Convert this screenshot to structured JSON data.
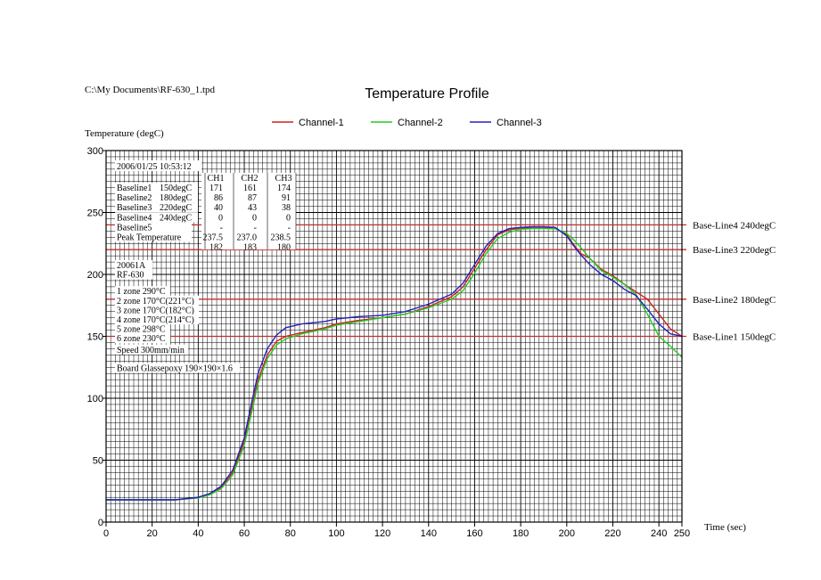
{
  "file_path": "C:\\My Documents\\RF-630_1.tpd",
  "chart_data": {
    "type": "line",
    "title": "Temperature Profile",
    "ylabel": "Temperature (degC)",
    "xlabel": "Time (sec)",
    "xlim": [
      0,
      250
    ],
    "ylim": [
      0,
      300
    ],
    "x_ticks": [
      0,
      20,
      40,
      60,
      80,
      100,
      120,
      140,
      160,
      180,
      200,
      220,
      240,
      250
    ],
    "y_ticks": [
      0,
      50,
      100,
      150,
      200,
      250,
      300
    ],
    "grid": true,
    "legend_position": "top-center",
    "series": [
      {
        "name": "Channel-1",
        "color": "#cc2222",
        "x": [
          0,
          30,
          40,
          45,
          50,
          55,
          60,
          63,
          66,
          70,
          74,
          78,
          85,
          95,
          100,
          110,
          120,
          130,
          140,
          150,
          155,
          160,
          165,
          170,
          175,
          180,
          185,
          190,
          195,
          200,
          203,
          206,
          210,
          215,
          220,
          225,
          230,
          235,
          240,
          245,
          250
        ],
        "y": [
          18,
          18,
          20,
          23,
          28,
          40,
          65,
          90,
          115,
          135,
          146,
          150,
          153,
          157,
          160,
          163,
          165,
          168,
          174,
          182,
          190,
          205,
          220,
          232,
          236,
          237.5,
          237.5,
          237.5,
          237.3,
          232,
          224,
          217,
          213,
          204,
          199,
          192,
          186,
          180,
          168,
          156,
          150
        ]
      },
      {
        "name": "Channel-2",
        "color": "#22cc22",
        "x": [
          0,
          30,
          40,
          45,
          50,
          55,
          60,
          63,
          66,
          70,
          74,
          78,
          85,
          95,
          100,
          110,
          120,
          130,
          140,
          150,
          155,
          160,
          165,
          170,
          175,
          180,
          185,
          190,
          195,
          200,
          203,
          206,
          210,
          215,
          220,
          225,
          230,
          235,
          240,
          245,
          250
        ],
        "y": [
          18,
          18,
          19.5,
          22,
          27,
          38,
          62,
          87,
          112,
          132,
          143,
          148,
          152,
          156,
          159,
          162,
          165,
          168,
          173,
          180,
          187,
          201,
          217,
          229,
          234,
          236.5,
          237,
          237,
          236.8,
          233,
          228,
          222,
          213,
          203,
          198,
          192,
          184,
          168,
          150,
          142,
          133
        ]
      },
      {
        "name": "Channel-3",
        "color": "#2222bb",
        "x": [
          0,
          30,
          40,
          45,
          50,
          55,
          60,
          63,
          66,
          70,
          74,
          78,
          85,
          95,
          100,
          110,
          120,
          130,
          140,
          150,
          155,
          160,
          165,
          170,
          175,
          180,
          185,
          190,
          195,
          200,
          203,
          206,
          210,
          215,
          220,
          225,
          230,
          235,
          240,
          245,
          250
        ],
        "y": [
          18,
          18,
          20,
          23,
          29,
          42,
          68,
          95,
          120,
          140,
          151,
          157,
          160,
          162,
          164,
          166,
          167,
          170,
          176,
          184,
          193,
          208,
          223,
          233,
          237,
          238,
          238.5,
          238.5,
          238,
          231,
          223,
          216,
          208,
          200,
          195,
          188,
          183,
          172,
          160,
          152,
          150
        ]
      }
    ],
    "baselines": [
      {
        "label": "Base-Line4 240degC",
        "value": 240
      },
      {
        "label": "Base-Line3 220degC",
        "value": 220
      },
      {
        "label": "Base-Line2 180degC",
        "value": 180
      },
      {
        "label": "Base-Line1 150degC",
        "value": 150
      }
    ]
  },
  "info_box": {
    "timestamp": "2006/01/25 10:53:12",
    "columns": [
      "CH1",
      "CH2",
      "CH3"
    ],
    "rows": [
      {
        "label": "Baseline1",
        "value": "150degC",
        "cells": [
          "171",
          "161",
          "174"
        ]
      },
      {
        "label": "Baseline2",
        "value": "180degC",
        "cells": [
          "86",
          "87",
          "91"
        ]
      },
      {
        "label": "Baseline3",
        "value": "220degC",
        "cells": [
          "40",
          "43",
          "38"
        ]
      },
      {
        "label": "Baseline4",
        "value": "240degC",
        "cells": [
          "0",
          "0",
          "0"
        ]
      },
      {
        "label": "Baseline5",
        "value": "",
        "cells": [
          "-",
          "-",
          "-"
        ]
      },
      {
        "label": "Peak Temperature",
        "value": "",
        "cells": [
          "237.5",
          "237.0",
          "238.5"
        ]
      },
      {
        "label": "",
        "value": "",
        "cells": [
          "182",
          "183",
          "180"
        ]
      }
    ],
    "lines": [
      "20061A",
      "RF-630",
      "1 zone 290°C",
      "2 zone 170°C(221°C)",
      "3 zone 170°C(182°C)",
      "4 zone 170°C(214°C)",
      "5 zone 298°C",
      "6 zone 230°C",
      "Speed 300mm/min",
      "Board Glassepoxy 190×190×1.6"
    ]
  }
}
